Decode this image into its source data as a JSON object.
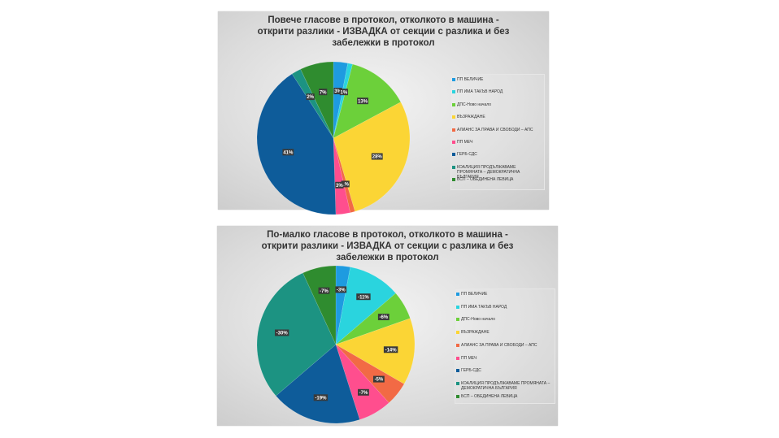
{
  "chart_data": [
    {
      "type": "pie",
      "title": "Повече гласове в протокол, отколкото в машина - открити разлики - ИЗВАДКА от секции с разлика и без забележки в протокол",
      "categories": [
        "ПП ВЕЛИЧИЕ",
        "ПП ИМА ТАКЪВ НАРОД",
        "ДПС-Ново начало",
        "ВЪЗРАЖДАНЕ",
        "АЛИАНС ЗА ПРАВА И СВОБОДИ – АПС",
        "ПП МЕЧ",
        "ГЕРБ-СДС",
        "КОАЛИЦИЯ ПРОДЪЛЖАВАМЕ ПРОМЯНАТА – ДЕМОКРАТИЧНА БЪЛГАРИЯ",
        "БСП – ОБЕДИНЕНА ЛЕВИЦА"
      ],
      "values": [
        3,
        1,
        13,
        28,
        1,
        3,
        41,
        2,
        7
      ],
      "data_labels": [
        "3%",
        "1%",
        "13%",
        "28%",
        "1%",
        "3%",
        "41%",
        "2%",
        "7%"
      ],
      "colors": [
        "#1e9be0",
        "#2ad4de",
        "#6cd03a",
        "#fbd535",
        "#f26a45",
        "#ff4e8e",
        "#0e5c9a",
        "#1c9382",
        "#2f8c2f"
      ],
      "legend_position": "right"
    },
    {
      "type": "pie",
      "title": "По-малко гласове в протокол, отколкото в машина - открити разлики - ИЗВАДКА от секции с разлика и без забележки в протокол",
      "categories": [
        "ПП ВЕЛИЧИЕ",
        "ПП ИМА ТАКЪВ НАРОД",
        "ДПС-Ново начало",
        "ВЪЗРАЖДАНЕ",
        "АЛИАНС ЗА ПРАВА И СВОБОДИ – АПС",
        "ПП МЕЧ",
        "ГЕРБ-СДС",
        "КОАЛИЦИЯ ПРОДЪЛЖАВАМЕ ПРОМЯНАТА – ДЕМОКРАТИЧНА БЪЛГАРИЯ",
        "БСП – ОБЕДИНЕНА ЛЕВИЦА"
      ],
      "values": [
        3,
        11,
        6,
        14,
        5,
        7,
        19,
        30,
        7
      ],
      "data_labels": [
        "-3%",
        "-11%",
        "-6%",
        "-14%",
        "-5%",
        "-7%",
        "-19%",
        "-30%",
        "-7%"
      ],
      "colors": [
        "#1e9be0",
        "#2ad4de",
        "#6cd03a",
        "#fbd535",
        "#f26a45",
        "#ff4e8e",
        "#0e5c9a",
        "#1c9382",
        "#2f8c2f"
      ],
      "legend_position": "right"
    }
  ]
}
